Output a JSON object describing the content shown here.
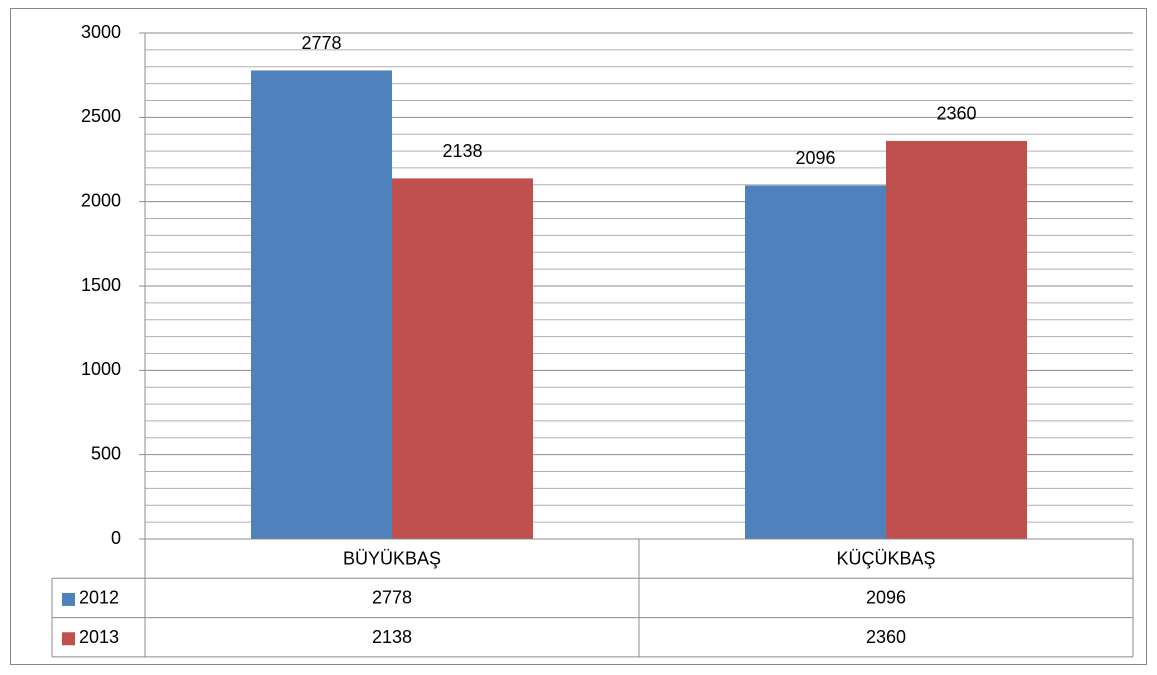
{
  "chart_data": {
    "type": "bar",
    "categories": [
      "BÜYÜKBAŞ",
      "KÜÇÜKBAŞ"
    ],
    "series": [
      {
        "name": "2012",
        "color": "#4f81bd",
        "values": [
          2778,
          2096
        ]
      },
      {
        "name": "2013",
        "color": "#c0504d",
        "values": [
          2138,
          2360
        ]
      }
    ],
    "ylim": [
      0,
      3000
    ],
    "yticks": [
      0,
      500,
      1000,
      1500,
      2000,
      2500,
      3000
    ],
    "y_minor_ticks": [
      100,
      200,
      300,
      400,
      600,
      700,
      800,
      900,
      1100,
      1200,
      1300,
      1400,
      1600,
      1700,
      1800,
      1900,
      2100,
      2200,
      2300,
      2400,
      2600,
      2700,
      2800,
      2900
    ],
    "grid": true,
    "data_table": true
  }
}
